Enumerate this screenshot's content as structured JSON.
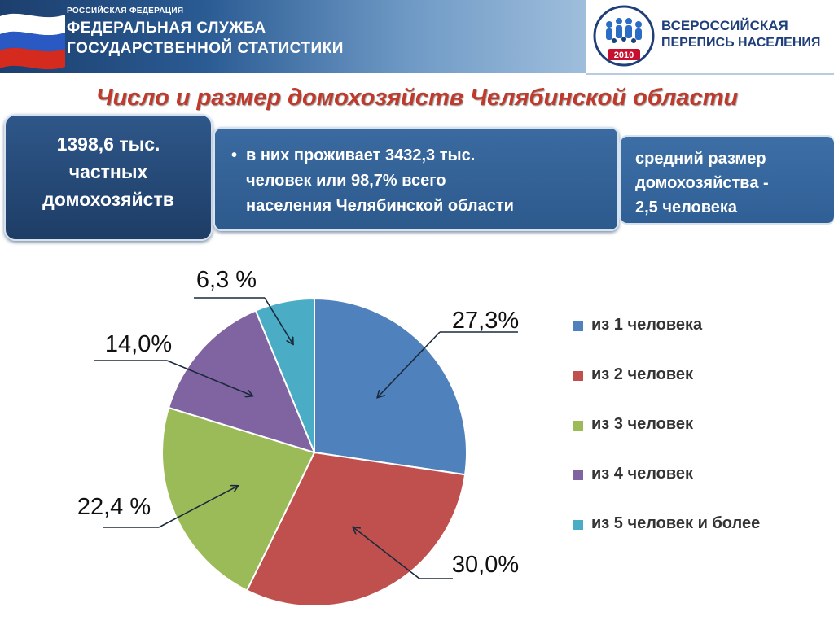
{
  "header": {
    "org_small": "РОССИЙСКАЯ ФЕДЕРАЦИЯ",
    "org_line1": "ФЕДЕРАЛЬНАЯ СЛУЖБА",
    "org_line2": "ГОСУДАРСТВЕННОЙ СТАТИСТИКИ",
    "census_line1": "ВСЕРОССИЙСКАЯ",
    "census_line2": "ПЕРЕПИСЬ НАСЕЛЕНИЯ",
    "census_year": "2010"
  },
  "title": "Число и размер домохозяйств Челябинской области",
  "info": {
    "households_line1": "1398,6 тыс.",
    "households_line2": "частных",
    "households_line3": "домохозяйств",
    "bullet": "•",
    "population_line1": "в них проживает 3432,3 тыс.",
    "population_line2": "человек или 98,7% всего",
    "population_line3": "населения Челябинской области",
    "avg_line1": "средний размер",
    "avg_line2": "домохозяйства -",
    "avg_line3": "2,5 человека"
  },
  "chart_data": {
    "type": "pie",
    "title": "",
    "categories": [
      "из 1 человека",
      "из 2 человек",
      "из 3 человек",
      "из 4 человек",
      "из 5 человек и более"
    ],
    "values": [
      27.3,
      30.0,
      22.4,
      14.0,
      6.3
    ],
    "data_labels": [
      "27,3%",
      "30,0%",
      "22,4 %",
      "14,0%",
      "6,3 %"
    ],
    "colors": [
      "#4f81bd",
      "#c0504d",
      "#9bbb59",
      "#8064a2",
      "#4bacc6"
    ],
    "start_angle": "12 o'clock",
    "direction": "clockwise",
    "legend_position": "right"
  }
}
